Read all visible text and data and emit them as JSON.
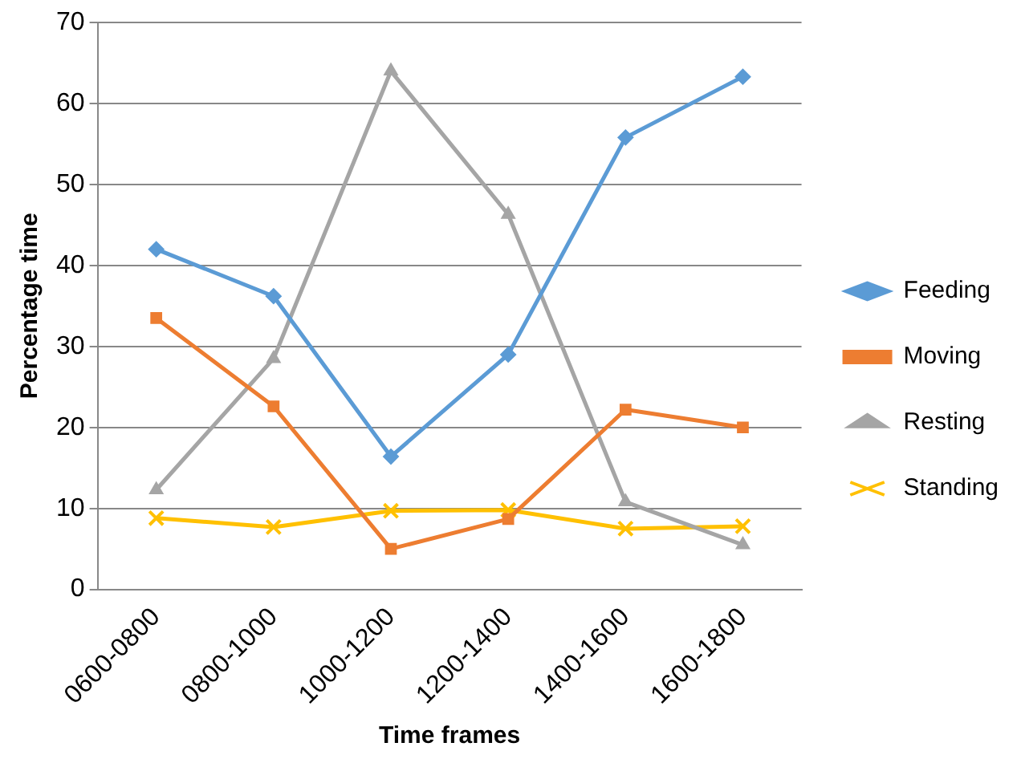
{
  "chart_data": {
    "type": "line",
    "xlabel": "Time frames",
    "ylabel": "Percentage time",
    "categories": [
      "0600-0800",
      "0800-1000",
      "1000-1200",
      "1200-1400",
      "1400-1600",
      "1600-1800"
    ],
    "series": [
      {
        "name": "Feeding",
        "color": "#5b9bd5",
        "marker": "diamond",
        "values": [
          42,
          36.2,
          16.4,
          29,
          55.8,
          63.3
        ]
      },
      {
        "name": "Moving",
        "color": "#ed7d31",
        "marker": "square",
        "values": [
          33.5,
          22.6,
          5,
          8.7,
          22.2,
          20
        ]
      },
      {
        "name": "Resting",
        "color": "#a5a5a5",
        "marker": "triangle",
        "values": [
          12.3,
          28.5,
          64,
          46.3,
          10.8,
          5.5
        ]
      },
      {
        "name": "Standing",
        "color": "#ffc000",
        "marker": "cross",
        "values": [
          8.8,
          7.7,
          9.7,
          9.8,
          7.5,
          7.8
        ]
      }
    ],
    "ylim": [
      0,
      70
    ],
    "yticks": [
      0,
      10,
      20,
      30,
      40,
      50,
      60,
      70
    ],
    "grid": "y",
    "legend": "right",
    "line_style": "solid"
  }
}
